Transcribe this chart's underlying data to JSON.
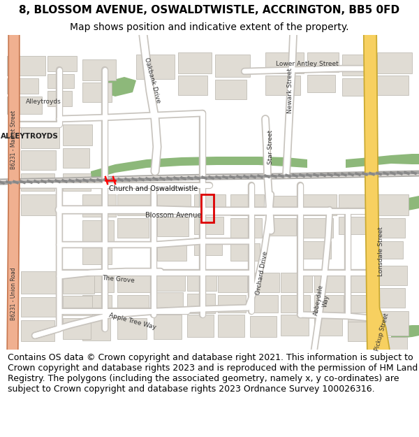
{
  "title_line1": "8, BLOSSOM AVENUE, OSWALDTWISTLE, ACCRINGTON, BB5 0FD",
  "title_line2": "Map shows position and indicative extent of the property.",
  "footer_text": "Contains OS data © Crown copyright and database right 2021. This information is subject to Crown copyright and database rights 2023 and is reproduced with the permission of HM Land Registry. The polygons (including the associated geometry, namely x, y co-ordinates) are subject to Crown copyright and database rights 2023 Ordnance Survey 100026316.",
  "title_fontsize": 11,
  "subtitle_fontsize": 10,
  "footer_fontsize": 9,
  "bg_color": "#ffffff",
  "map_bg": "#f2efe9",
  "road_color": "#ffffff",
  "road_outline": "#c8c4be",
  "major_road_color": "#f7d060",
  "major_road_outline": "#c8a830",
  "pink_road_color": "#f0b090",
  "pink_road_outline": "#c87850",
  "green_park_color": "#8db87a",
  "building_color": "#e0dcd4",
  "building_outline": "#b8b4ac",
  "plot_color": "#dd0000",
  "text_color": "#000000",
  "label_color": "#333333"
}
